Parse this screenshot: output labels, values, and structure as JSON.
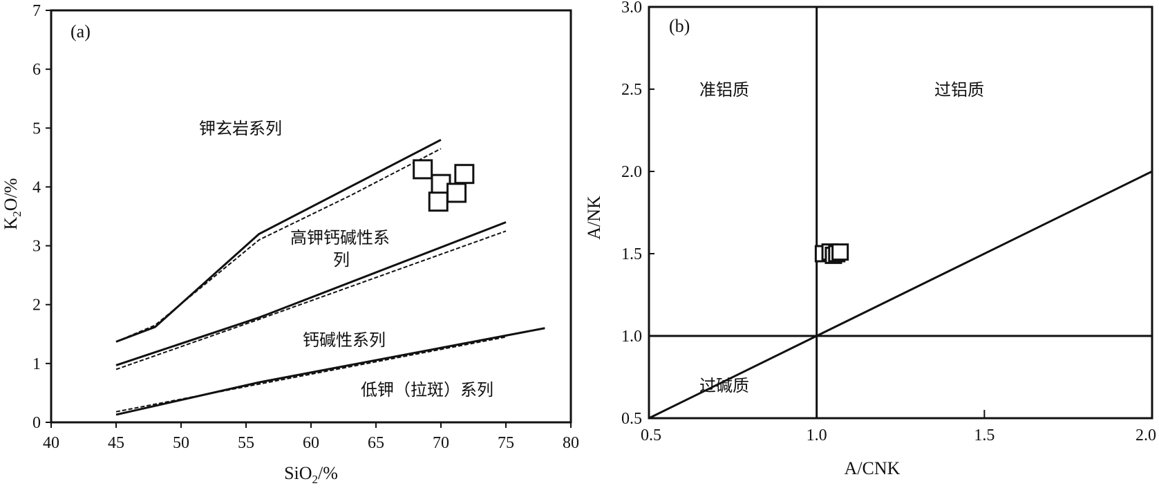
{
  "chart_data": [
    {
      "type": "scatter",
      "panel": "(a)",
      "xlabel_main": "SiO",
      "xlabel_sub": "2",
      "xlabel_tail": "/%",
      "ylabel_main": "K",
      "ylabel_sub": "2",
      "ylabel_tail": "O/%",
      "xlim": [
        40,
        80
      ],
      "ylim": [
        0,
        7
      ],
      "xticks": [
        "40",
        "45",
        "50",
        "55",
        "60",
        "65",
        "70",
        "75",
        "80"
      ],
      "yticks": [
        "0",
        "1",
        "2",
        "3",
        "4",
        "5",
        "6",
        "7"
      ],
      "boundaries_solid": [
        [
          [
            45,
            1.37
          ],
          [
            48,
            1.62
          ],
          [
            56,
            3.2
          ],
          [
            70,
            4.8
          ]
        ],
        [
          [
            45,
            0.97
          ],
          [
            56,
            1.78
          ],
          [
            75,
            3.4
          ]
        ],
        [
          [
            45,
            0.13
          ],
          [
            56,
            0.68
          ],
          [
            78,
            1.6
          ]
        ]
      ],
      "boundaries_dashed": [
        [
          [
            45,
            1.37
          ],
          [
            48,
            1.65
          ],
          [
            56,
            3.1
          ],
          [
            63,
            3.85
          ],
          [
            70,
            4.65
          ]
        ],
        [
          [
            45,
            0.9
          ],
          [
            56,
            1.75
          ],
          [
            75,
            3.25
          ]
        ],
        [
          [
            45,
            0.18
          ],
          [
            56,
            0.65
          ],
          [
            75,
            1.45
          ]
        ]
      ],
      "region_labels": [
        "钾玄岩系列",
        "高钾钙碱性系",
        "列",
        "钙碱性系列",
        "低钾（拉斑）系列"
      ],
      "points": [
        {
          "x": 68.6,
          "y": 4.3
        },
        {
          "x": 71.8,
          "y": 4.22
        },
        {
          "x": 70.0,
          "y": 4.05
        },
        {
          "x": 71.2,
          "y": 3.9
        },
        {
          "x": 69.8,
          "y": 3.75
        }
      ]
    },
    {
      "type": "scatter",
      "panel": "(b)",
      "xlabel": "A/CNK",
      "ylabel": "A/NK",
      "xlim": [
        0.5,
        2.0
      ],
      "ylim": [
        0.5,
        3.0
      ],
      "xticks": [
        "0.5",
        "1.0",
        "1.5",
        "2.0"
      ],
      "yticks": [
        "0.5",
        "1.0",
        "1.5",
        "2.0",
        "2.5",
        "3.0"
      ],
      "boundaries": [
        [
          [
            1.0,
            0.5
          ],
          [
            1.0,
            3.0
          ]
        ],
        [
          [
            0.5,
            1.0
          ],
          [
            2.0,
            1.0
          ]
        ],
        [
          [
            0.5,
            0.5
          ],
          [
            2.0,
            2.0
          ]
        ]
      ],
      "region_labels": [
        "准铝质",
        "过铝质",
        "过碱质"
      ],
      "points": [
        {
          "x": 1.02,
          "y": 1.5
        },
        {
          "x": 1.04,
          "y": 1.51
        },
        {
          "x": 1.05,
          "y": 1.49
        },
        {
          "x": 1.06,
          "y": 1.5
        },
        {
          "x": 1.07,
          "y": 1.51
        }
      ]
    }
  ]
}
